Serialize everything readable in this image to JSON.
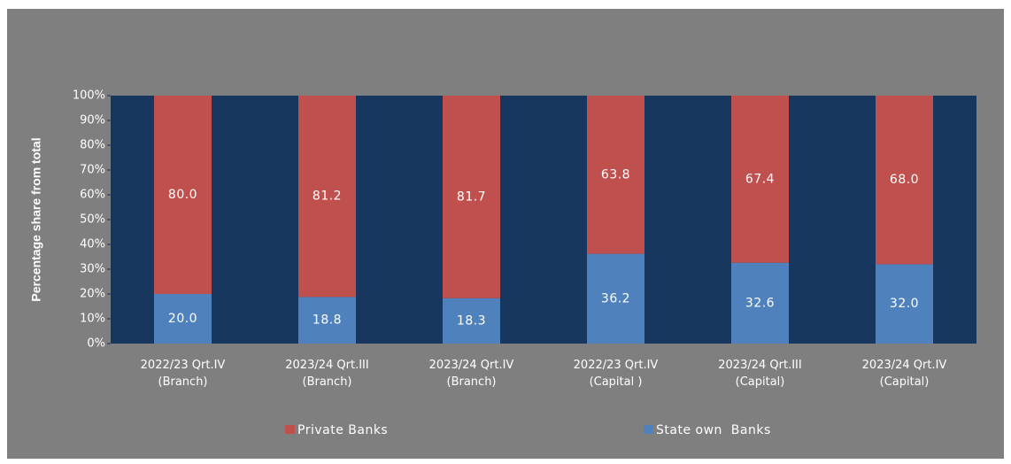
{
  "chart_data": {
    "type": "stacked_bar",
    "y_label": "Percentage share from total",
    "categories": [
      [
        "2022/23 Qrt.IV",
        "(Branch)"
      ],
      [
        "2023/24 Qrt.III",
        "(Branch)"
      ],
      [
        "2023/24 Qrt.IV",
        "(Branch)"
      ],
      [
        "2022/23 Qrt.IV",
        "(Capital )"
      ],
      [
        "2023/24 Qrt.III",
        "(Capital)"
      ],
      [
        "2023/24 Qrt.IV",
        "(Capital)"
      ]
    ],
    "series": [
      {
        "name": "Private Banks",
        "color": "#c0504d",
        "values": [
          80.0,
          81.2,
          81.7,
          63.8,
          67.4,
          68.0
        ],
        "value_labels": [
          "80.0",
          "81.2",
          "81.7",
          "63.8",
          "67.4",
          "68.0"
        ]
      },
      {
        "name": "State own  Banks",
        "color": "#4f81bd",
        "values": [
          20.0,
          18.8,
          18.3,
          36.2,
          32.6,
          32.0
        ],
        "value_labels": [
          "20.0",
          "18.8",
          "18.3",
          "36.2",
          "32.6",
          "32.0"
        ]
      }
    ],
    "ylim": [
      0,
      100
    ],
    "yticks": [
      {
        "value": 0,
        "label": "0%"
      },
      {
        "value": 10,
        "label": "10%"
      },
      {
        "value": 20,
        "label": "20%"
      },
      {
        "value": 30,
        "label": "30%"
      },
      {
        "value": 40,
        "label": "40%"
      },
      {
        "value": 50,
        "label": "50%"
      },
      {
        "value": 60,
        "label": "60%"
      },
      {
        "value": 70,
        "label": "70%"
      },
      {
        "value": 80,
        "label": "80%"
      },
      {
        "value": 90,
        "label": "90%"
      },
      {
        "value": 100,
        "label": "100%"
      }
    ],
    "legend": "bottom"
  }
}
